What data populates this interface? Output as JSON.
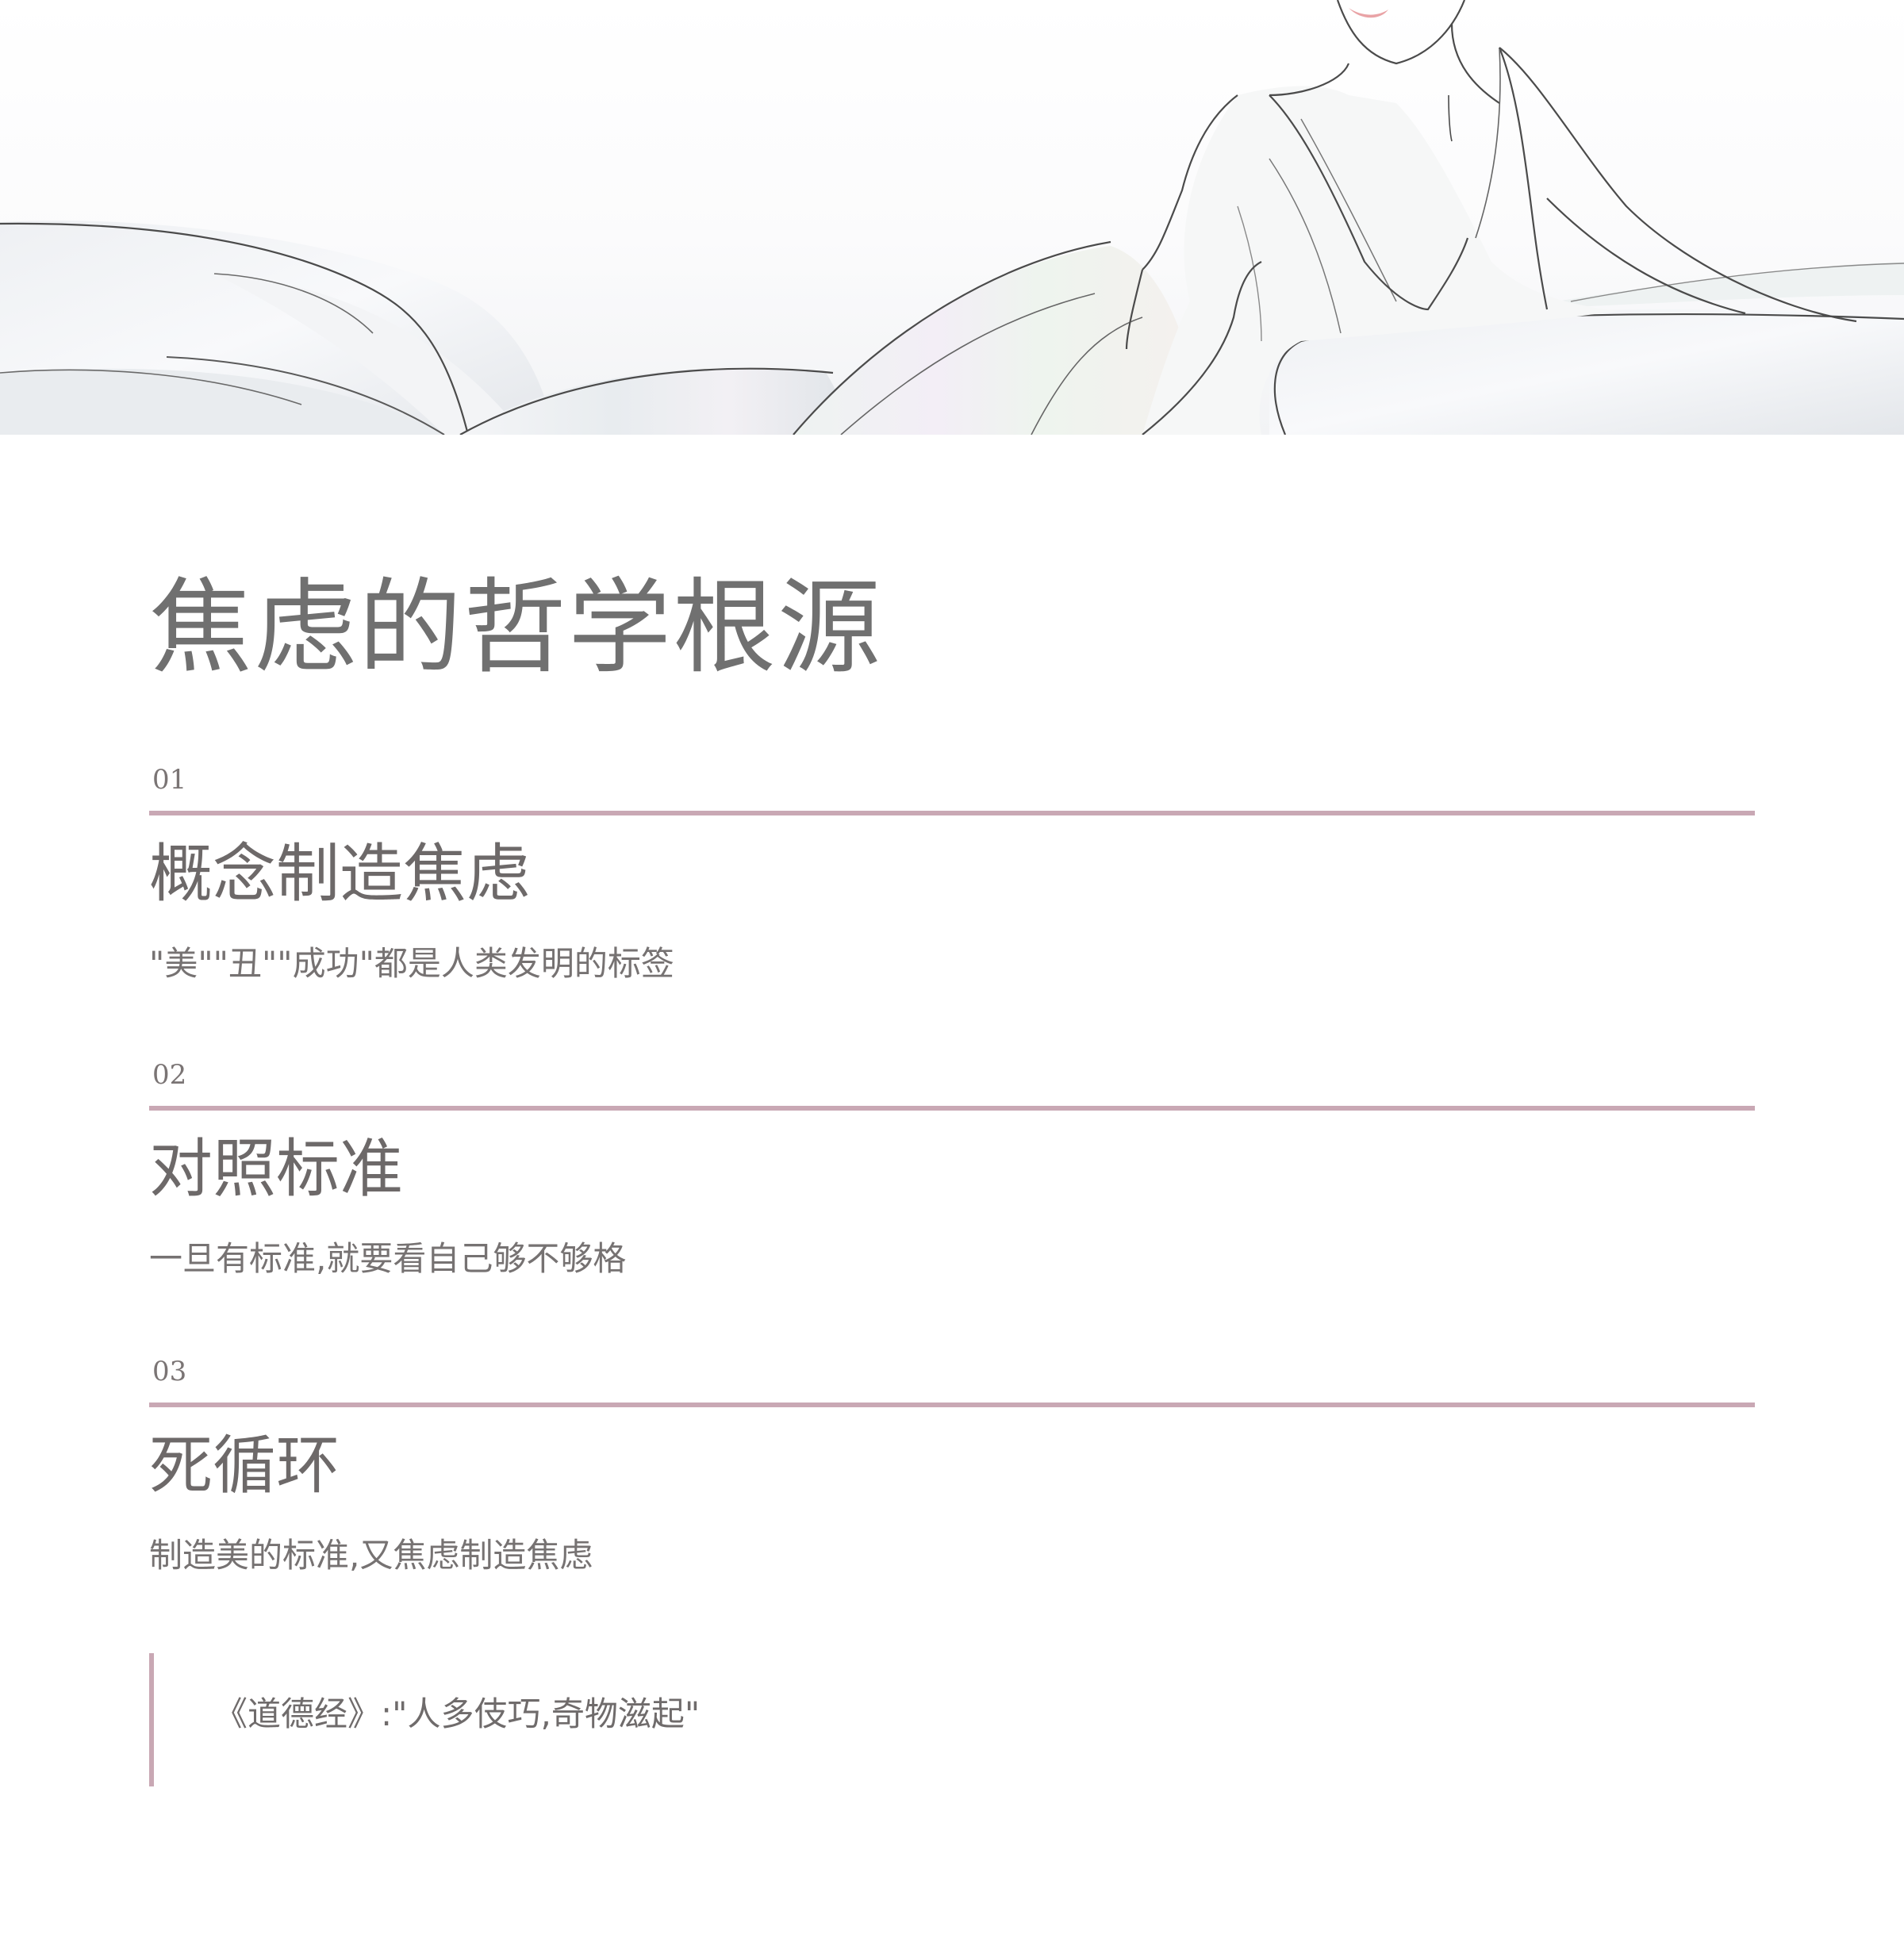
{
  "page": {
    "title": "焦虑的哲学根源"
  },
  "sections": [
    {
      "number": "01",
      "heading": "概念制造焦虑",
      "description": "\"美\"\"丑\"\"成功\"都是人类发明的标签"
    },
    {
      "number": "02",
      "heading": "对照标准",
      "description": "一旦有标准,就要看自己够不够格"
    },
    {
      "number": "03",
      "heading": "死循环",
      "description": "制造美的标准,又焦虑制造焦虑"
    }
  ],
  "quote": {
    "text": "《道德经》:\"人多伎巧,奇物滋起\""
  },
  "colors": {
    "accent": "#c9a8b4",
    "text": "#6f6b6b",
    "lips": "#e9a3a6"
  },
  "icons": {
    "hero": "line-art-woman-in-flowing-satin-illustration"
  }
}
